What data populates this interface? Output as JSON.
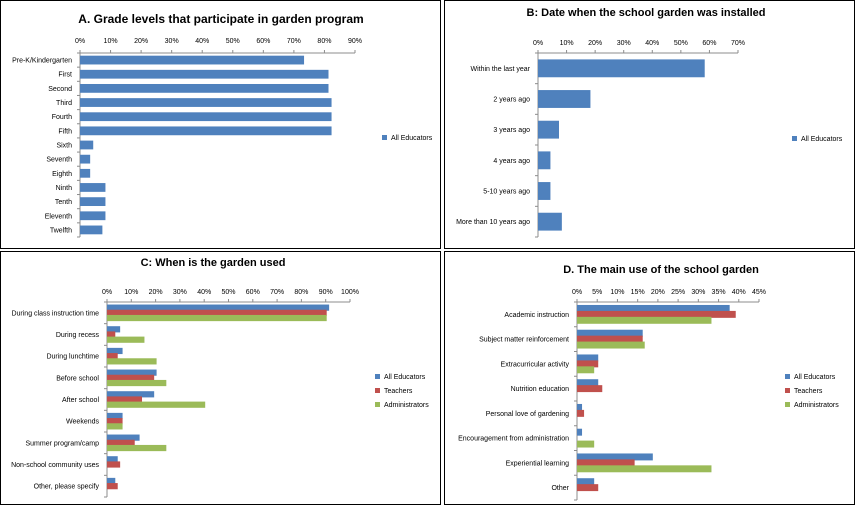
{
  "colors": {
    "all_educators": "#4f81bd",
    "teachers": "#c0504d",
    "administrators": "#9bbb59",
    "axis": "#8c8c8c"
  },
  "chart_data": [
    {
      "id": "A",
      "type": "bar",
      "orientation": "horizontal",
      "title": "A. Grade levels that participate in garden program",
      "categories": [
        "Pre-K/Kindergarten",
        "First",
        "Second",
        "Third",
        "Fourth",
        "Fifth",
        "Sixth",
        "Seventh",
        "Eighth",
        "Ninth",
        "Tenth",
        "Eleventh",
        "Twelfth"
      ],
      "series": [
        {
          "name": "All Educators",
          "color_key": "all_educators",
          "values": [
            73,
            81,
            81,
            82,
            82,
            82,
            4,
            3,
            3,
            8,
            8,
            8,
            7
          ]
        }
      ],
      "xlim": [
        0,
        90
      ],
      "ticks": [
        "0%",
        "10%",
        "20%",
        "30%",
        "40%",
        "50%",
        "60%",
        "70%",
        "80%",
        "90%"
      ],
      "tick_values": [
        0,
        10,
        20,
        30,
        40,
        50,
        60,
        70,
        80,
        90
      ],
      "legend": "right",
      "grid": false
    },
    {
      "id": "B",
      "type": "bar",
      "orientation": "horizontal",
      "title": "B: Date when the school garden was installed",
      "categories": [
        "Within the last year",
        "2 years ago",
        "3 years ago",
        "4 years ago",
        "5-10 years ago",
        "More than 10 years ago"
      ],
      "series": [
        {
          "name": "All Educators",
          "color_key": "all_educators",
          "values": [
            58,
            18,
            7,
            4,
            4,
            8
          ]
        }
      ],
      "xlim": [
        0,
        70
      ],
      "ticks": [
        "0%",
        "10%",
        "20%",
        "30%",
        "40%",
        "50%",
        "60%",
        "70%"
      ],
      "tick_values": [
        0,
        10,
        20,
        30,
        40,
        50,
        60,
        70
      ],
      "legend": "right",
      "grid": false
    },
    {
      "id": "C",
      "type": "bar",
      "orientation": "horizontal",
      "title": "C:  When is the garden used",
      "categories": [
        "During class instruction time",
        "During recess",
        "During lunchtime",
        "Before school",
        "After school",
        "Weekends",
        "Summer program/camp",
        "Non-school community uses",
        "Other, please specify"
      ],
      "series": [
        {
          "name": "All Educators",
          "color_key": "all_educators",
          "values": [
            91,
            5,
            6,
            20,
            19,
            6,
            13,
            4,
            3
          ]
        },
        {
          "name": "Teachers",
          "color_key": "teachers",
          "values": [
            90,
            3,
            4,
            19,
            14,
            6,
            11,
            5,
            4
          ]
        },
        {
          "name": "Administrators",
          "color_key": "administrators",
          "values": [
            90,
            15,
            20,
            24,
            40,
            6,
            24,
            0,
            0
          ]
        }
      ],
      "xlim": [
        0,
        100
      ],
      "ticks": [
        "0%",
        "10%",
        "20%",
        "30%",
        "40%",
        "50%",
        "60%",
        "70%",
        "80%",
        "90%",
        "100%"
      ],
      "tick_values": [
        0,
        10,
        20,
        30,
        40,
        50,
        60,
        70,
        80,
        90,
        100
      ],
      "legend": "right",
      "grid": false
    },
    {
      "id": "D",
      "type": "bar",
      "orientation": "horizontal",
      "title": "D. The main use of the school garden",
      "categories": [
        "Academic instruction",
        "Subject matter reinforcement",
        "Extracurricular activity",
        "Nutrition education",
        "Personal love of gardening",
        "Encouragement from administration",
        "Experiential learning",
        "Other"
      ],
      "series": [
        {
          "name": "All Educators",
          "color_key": "all_educators",
          "values": [
            37.5,
            16,
            5,
            5,
            1,
            1,
            18.5,
            4
          ]
        },
        {
          "name": "Teachers",
          "color_key": "teachers",
          "values": [
            39,
            16,
            5,
            6,
            1.5,
            0,
            14,
            5
          ]
        },
        {
          "name": "Administrators",
          "color_key": "administrators",
          "values": [
            33,
            16.5,
            4,
            0,
            0,
            4,
            33,
            0
          ]
        }
      ],
      "xlim": [
        0,
        45
      ],
      "ticks": [
        "0%",
        "5%",
        "10%",
        "15%",
        "20%",
        "25%",
        "30%",
        "35%",
        "40%",
        "45%"
      ],
      "tick_values": [
        0,
        5,
        10,
        15,
        20,
        25,
        30,
        35,
        40,
        45
      ],
      "legend": "right",
      "grid": false
    }
  ]
}
